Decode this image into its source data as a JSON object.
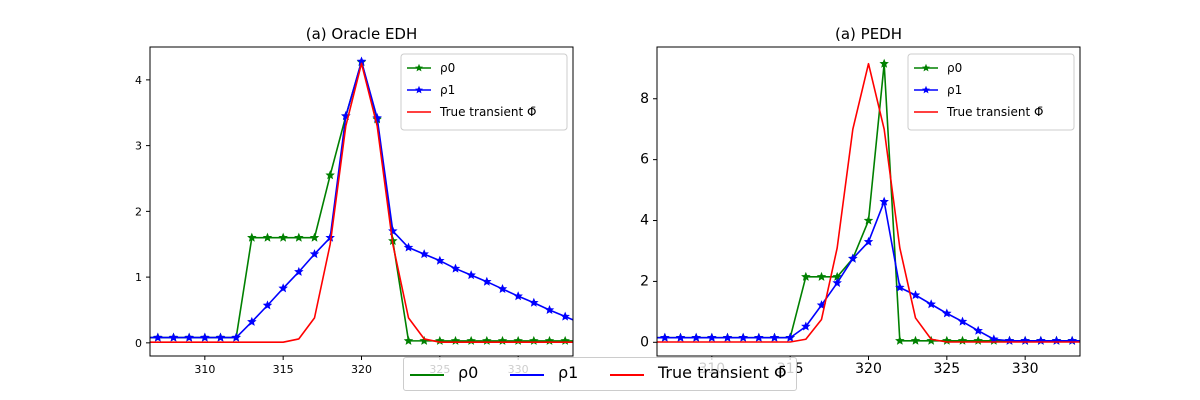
{
  "chart_data": [
    {
      "type": "line",
      "title": "(a) Oracle EDH",
      "xlabel": "",
      "ylabel": "",
      "xlim": [
        306.5,
        333.5
      ],
      "ylim": [
        -0.2,
        4.5
      ],
      "xticks": [
        310,
        315,
        320,
        325,
        330
      ],
      "yticks": [
        0,
        1,
        2,
        3,
        4
      ],
      "grid": false,
      "legend_position": "top-right",
      "series": [
        {
          "name": "ρ0",
          "color": "#008000",
          "marker": "star",
          "x": [
            306,
            307,
            308,
            309,
            310,
            311,
            312,
            313,
            314,
            315,
            316,
            317,
            318,
            319,
            320,
            321,
            322,
            323,
            324,
            325,
            326,
            327,
            328,
            329,
            330,
            331,
            332,
            333,
            334
          ],
          "y": [
            0.08,
            0.08,
            0.08,
            0.08,
            0.08,
            0.08,
            0.08,
            1.6,
            1.6,
            1.6,
            1.6,
            1.6,
            2.55,
            3.45,
            4.27,
            3.4,
            1.55,
            0.03,
            0.03,
            0.03,
            0.03,
            0.03,
            0.03,
            0.03,
            0.03,
            0.03,
            0.03,
            0.03,
            0.03
          ]
        },
        {
          "name": "ρ1",
          "color": "#0000ff",
          "marker": "star",
          "x": [
            306,
            307,
            308,
            309,
            310,
            311,
            312,
            313,
            314,
            315,
            316,
            317,
            318,
            319,
            320,
            321,
            322,
            323,
            324,
            325,
            326,
            327,
            328,
            329,
            330,
            331,
            332,
            333,
            334
          ],
          "y": [
            0.08,
            0.08,
            0.08,
            0.08,
            0.08,
            0.08,
            0.08,
            0.32,
            0.57,
            0.83,
            1.08,
            1.35,
            1.6,
            3.45,
            4.28,
            3.42,
            1.7,
            1.45,
            1.35,
            1.25,
            1.13,
            1.03,
            0.93,
            0.82,
            0.71,
            0.61,
            0.5,
            0.4,
            0.3
          ]
        },
        {
          "name": "True transient Φ̄",
          "color": "#ff0000",
          "marker": "none",
          "x": [
            306,
            307,
            308,
            309,
            310,
            311,
            312,
            313,
            314,
            315,
            316,
            317,
            318,
            319,
            320,
            321,
            322,
            323,
            324,
            325,
            326,
            327,
            328,
            329,
            330,
            331,
            332,
            333,
            334
          ],
          "y": [
            0.01,
            0.01,
            0.01,
            0.01,
            0.01,
            0.01,
            0.01,
            0.01,
            0.01,
            0.01,
            0.06,
            0.38,
            1.5,
            3.3,
            4.25,
            3.3,
            1.5,
            0.38,
            0.06,
            0.01,
            0.01,
            0.01,
            0.01,
            0.01,
            0.01,
            0.01,
            0.01,
            0.01,
            0.01
          ]
        }
      ]
    },
    {
      "type": "line",
      "title": "(a) PEDH",
      "xlabel": "",
      "ylabel": "",
      "xlim": [
        306.5,
        333.5
      ],
      "ylim": [
        -0.45,
        9.7
      ],
      "xticks": [
        310,
        315,
        320,
        325,
        330
      ],
      "yticks": [
        0,
        2,
        4,
        6,
        8
      ],
      "grid": false,
      "legend_position": "top-right",
      "series": [
        {
          "name": "ρ0",
          "color": "#008000",
          "marker": "star",
          "x": [
            306,
            307,
            308,
            309,
            310,
            311,
            312,
            313,
            314,
            315,
            316,
            317,
            318,
            319,
            320,
            321,
            322,
            323,
            324,
            325,
            326,
            327,
            328,
            329,
            330,
            331,
            332,
            333,
            334
          ],
          "y": [
            0.15,
            0.15,
            0.15,
            0.15,
            0.15,
            0.15,
            0.15,
            0.15,
            0.15,
            0.15,
            2.15,
            2.15,
            2.15,
            2.75,
            4.0,
            9.15,
            0.05,
            0.05,
            0.05,
            0.05,
            0.05,
            0.05,
            0.05,
            0.05,
            0.05,
            0.05,
            0.05,
            0.05,
            0.05
          ]
        },
        {
          "name": "ρ1",
          "color": "#0000ff",
          "marker": "star",
          "x": [
            306,
            307,
            308,
            309,
            310,
            311,
            312,
            313,
            314,
            315,
            316,
            317,
            318,
            319,
            320,
            321,
            322,
            323,
            324,
            325,
            326,
            327,
            328,
            329,
            330,
            331,
            332,
            333,
            334
          ],
          "y": [
            0.15,
            0.15,
            0.15,
            0.15,
            0.15,
            0.15,
            0.15,
            0.15,
            0.15,
            0.15,
            0.52,
            1.22,
            1.95,
            2.75,
            3.3,
            4.62,
            1.8,
            1.55,
            1.25,
            0.95,
            0.68,
            0.38,
            0.1,
            0.05,
            0.05,
            0.05,
            0.05,
            0.05,
            0.05
          ]
        },
        {
          "name": "True transient Φ̄",
          "color": "#ff0000",
          "marker": "none",
          "x": [
            306,
            307,
            308,
            309,
            310,
            311,
            312,
            313,
            314,
            315,
            316,
            317,
            318,
            319,
            320,
            321,
            322,
            323,
            324,
            325,
            326,
            327,
            328,
            329,
            330,
            331,
            332,
            333,
            334
          ],
          "y": [
            0.01,
            0.01,
            0.01,
            0.01,
            0.01,
            0.01,
            0.01,
            0.01,
            0.01,
            0.01,
            0.1,
            0.75,
            3.1,
            7.0,
            9.15,
            7.0,
            3.1,
            0.8,
            0.1,
            0.01,
            0.01,
            0.01,
            0.01,
            0.01,
            0.01,
            0.01,
            0.01,
            0.01,
            0.01
          ]
        }
      ]
    }
  ],
  "bottom_legend": {
    "items": [
      {
        "label": "ρ0",
        "color": "#008000",
        "marker": "star"
      },
      {
        "label": "ρ1",
        "color": "#0000ff",
        "marker": "star"
      },
      {
        "label": "True transient Φ̄",
        "color": "#ff0000",
        "marker": "none"
      }
    ]
  }
}
